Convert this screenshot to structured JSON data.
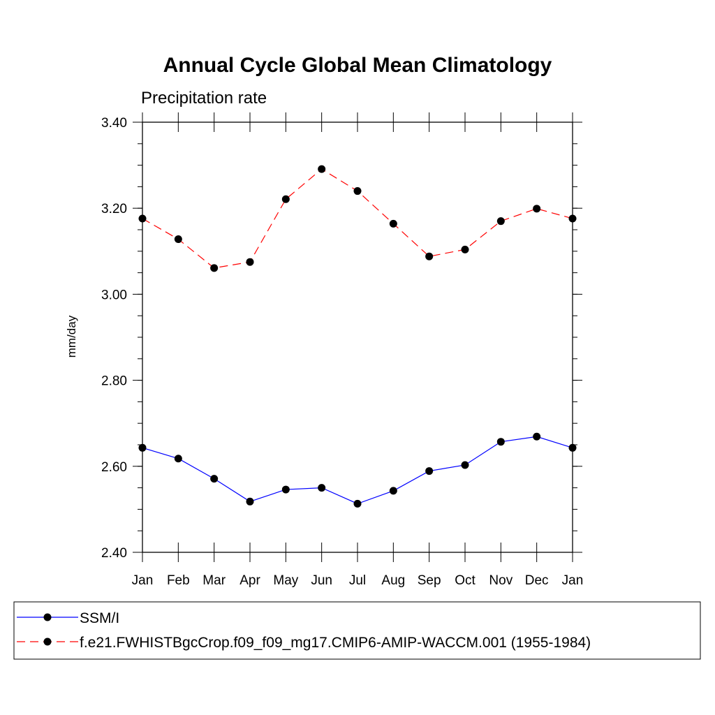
{
  "chart_data": {
    "type": "line",
    "title": "Annual Cycle Global Mean Climatology",
    "subtitle": "Precipitation rate",
    "xlabel": "",
    "ylabel": "mm/day",
    "categories": [
      "Jan",
      "Feb",
      "Mar",
      "Apr",
      "May",
      "Jun",
      "Jul",
      "Aug",
      "Sep",
      "Oct",
      "Nov",
      "Dec",
      "Jan"
    ],
    "ylim": [
      2.4,
      3.4
    ],
    "yticks": [
      "2.40",
      "2.60",
      "2.80",
      "3.00",
      "3.20",
      "3.40"
    ],
    "grid": false,
    "legend_position": "bottom",
    "series": [
      {
        "name": "SSM/I",
        "color": "#0000ff",
        "dash": "solid",
        "values": [
          2.643,
          2.618,
          2.571,
          2.518,
          2.546,
          2.55,
          2.513,
          2.543,
          2.589,
          2.603,
          2.657,
          2.669,
          2.643
        ]
      },
      {
        "name": "f.e21.FWHISTBgcCrop.f09_f09_mg17.CMIP6-AMIP-WACCM.001 (1955-1984)",
        "color": "#ff0000",
        "dash": "dashed",
        "values": [
          3.176,
          3.128,
          3.061,
          3.075,
          3.221,
          3.291,
          3.24,
          3.164,
          3.088,
          3.104,
          3.17,
          3.199,
          3.176
        ]
      }
    ]
  }
}
